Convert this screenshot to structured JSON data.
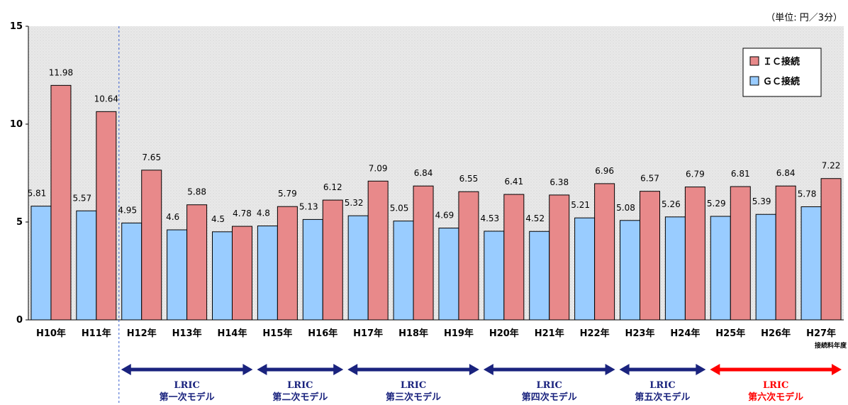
{
  "unit_note": "（単位: 円／3分）",
  "chart_data": {
    "type": "bar",
    "categories": [
      "H10年",
      "H11年",
      "H12年",
      "H13年",
      "H14年",
      "H15年",
      "H16年",
      "H17年",
      "H18年",
      "H19年",
      "H20年",
      "H21年",
      "H22年",
      "H23年",
      "H24年",
      "H25年",
      "H26年",
      "H27年"
    ],
    "series": [
      {
        "name": "GC接続",
        "color": "#99ccff",
        "values": [
          5.81,
          5.57,
          4.95,
          4.6,
          4.5,
          4.8,
          5.13,
          5.32,
          5.05,
          4.69,
          4.53,
          4.52,
          5.21,
          5.08,
          5.26,
          5.29,
          5.39,
          5.78
        ]
      },
      {
        "name": "ＩＣ接続",
        "color": "#e8898a",
        "values": [
          11.98,
          10.64,
          7.65,
          5.88,
          4.78,
          5.79,
          6.12,
          7.09,
          6.84,
          6.55,
          6.41,
          6.38,
          6.96,
          6.57,
          6.79,
          6.81,
          6.84,
          7.22
        ]
      }
    ],
    "data_labels": {
      "GC接続": [
        "5.81",
        "5.57",
        "4.95",
        "4.6",
        "4.5",
        "4.8",
        "5.13",
        "5.32",
        "5.05",
        "4.69",
        "4.53",
        "4.52",
        "5.21",
        "5.08",
        "5.26",
        "5.29",
        "5.39",
        "5.78"
      ],
      "ＩＣ接続": [
        "11.98",
        "10.64",
        "7.65",
        "5.88",
        "4.78",
        "5.79",
        "6.12",
        "7.09",
        "6.84",
        "6.55",
        "6.41",
        "6.38",
        "6.96",
        "6.57",
        "6.79",
        "6.81",
        "6.84",
        "7.22"
      ]
    },
    "ylim": [
      0,
      15
    ],
    "yticks": [
      "0",
      "5",
      "10",
      "15"
    ],
    "xlabel_note": "接続料年度",
    "legend": {
      "position": "top-right",
      "items": [
        "ＩＣ接続",
        "ＧＣ接続"
      ]
    },
    "gridlines": false,
    "eras": [
      {
        "line1": "LRIC",
        "line2": "第一次モデル",
        "from": 2,
        "to": 4,
        "color": "#1a237e"
      },
      {
        "line1": "LRIC",
        "line2": "第二次モデル",
        "from": 5,
        "to": 6,
        "color": "#1a237e"
      },
      {
        "line1": "LRIC",
        "line2": "第三次モデル",
        "from": 7,
        "to": 9,
        "color": "#1a237e"
      },
      {
        "line1": "LRIC",
        "line2": "第四次モデル",
        "from": 10,
        "to": 12,
        "color": "#1a237e"
      },
      {
        "line1": "LRIC",
        "line2": "第五次モデル",
        "from": 13,
        "to": 14,
        "color": "#1a237e"
      },
      {
        "line1": "LRIC",
        "line2": "第六次モデル",
        "from": 15,
        "to": 17,
        "color": "#ff0000"
      }
    ]
  }
}
